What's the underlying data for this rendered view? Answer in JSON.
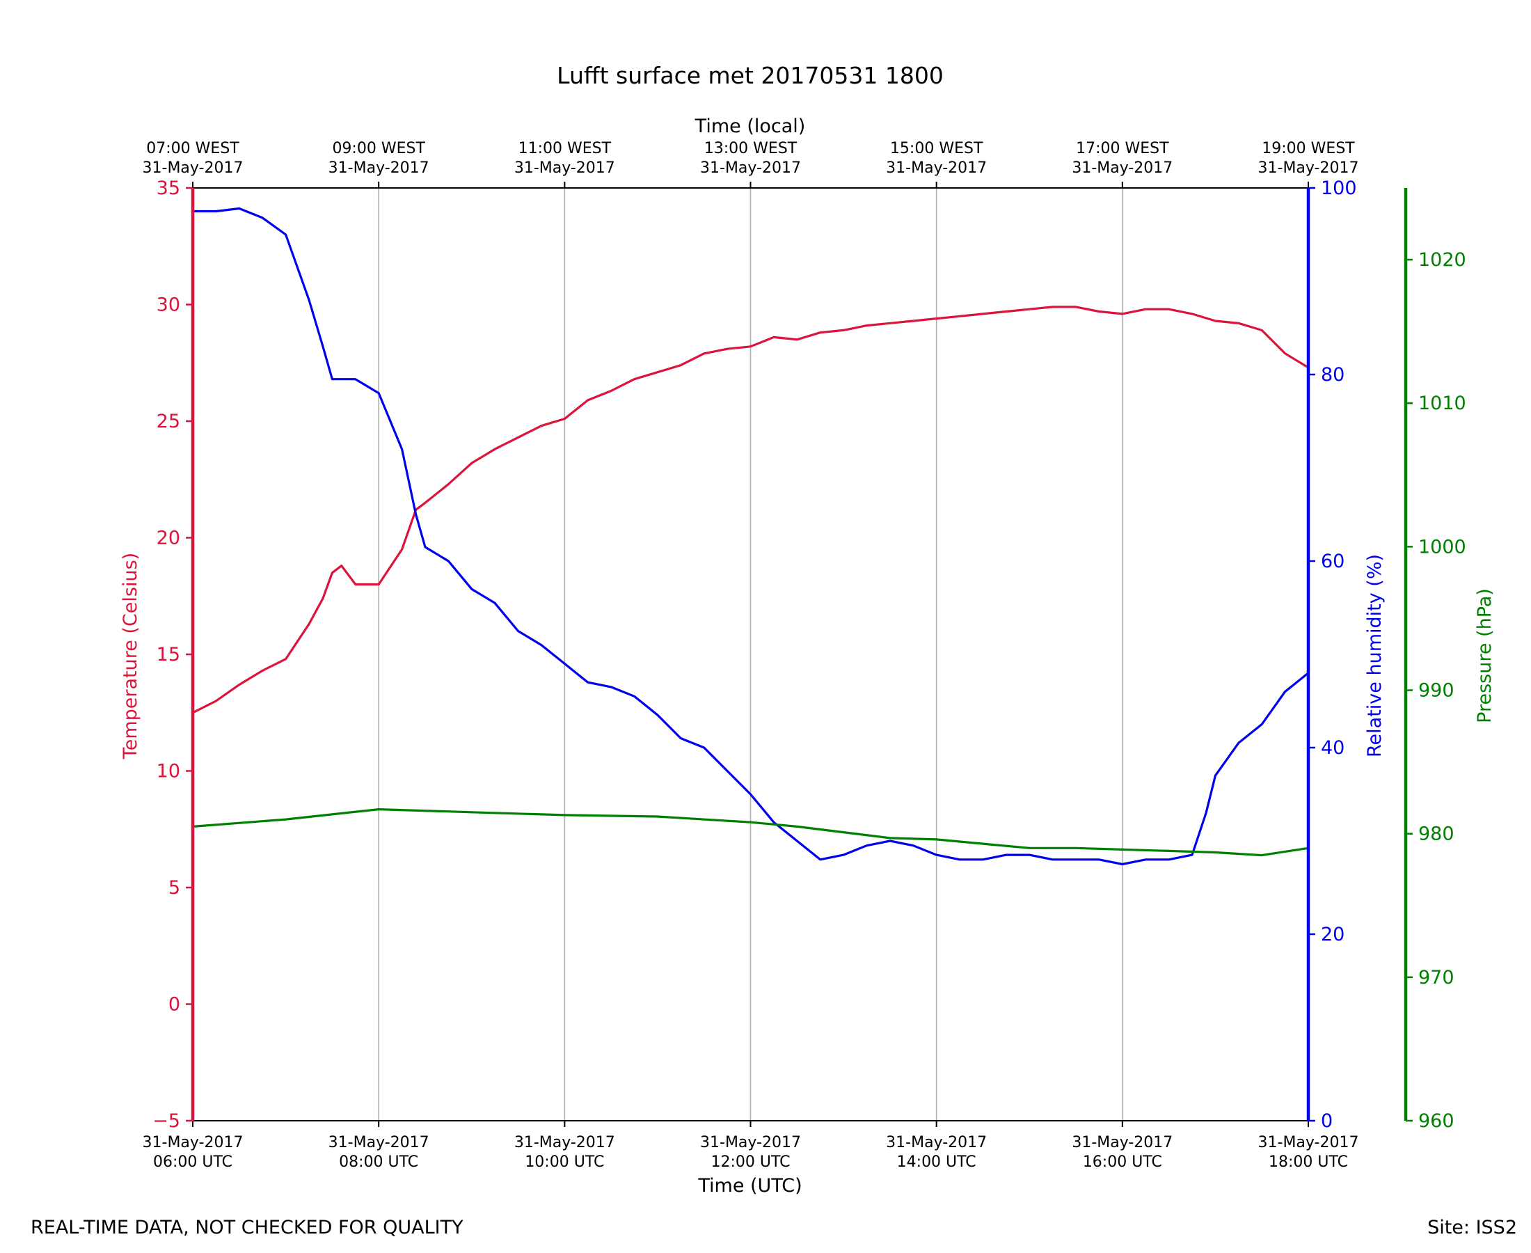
{
  "chart_data": {
    "type": "line",
    "title": "Lufft surface met 20170531 1800",
    "xlabel_bottom": "Time (UTC)",
    "xlabel_top": "Time (local)",
    "x_hours_range": [
      6,
      18
    ],
    "bottom_ticks": [
      {
        "hour": 6,
        "line1": "31-May-2017",
        "line2": "06:00 UTC"
      },
      {
        "hour": 8,
        "line1": "31-May-2017",
        "line2": "08:00 UTC"
      },
      {
        "hour": 10,
        "line1": "31-May-2017",
        "line2": "10:00 UTC"
      },
      {
        "hour": 12,
        "line1": "31-May-2017",
        "line2": "12:00 UTC"
      },
      {
        "hour": 14,
        "line1": "31-May-2017",
        "line2": "14:00 UTC"
      },
      {
        "hour": 16,
        "line1": "31-May-2017",
        "line2": "16:00 UTC"
      },
      {
        "hour": 18,
        "line1": "31-May-2017",
        "line2": "18:00 UTC"
      }
    ],
    "top_ticks": [
      {
        "hour": 6,
        "line1": "07:00 WEST",
        "line2": "31-May-2017"
      },
      {
        "hour": 8,
        "line1": "09:00 WEST",
        "line2": "31-May-2017"
      },
      {
        "hour": 10,
        "line1": "11:00 WEST",
        "line2": "31-May-2017"
      },
      {
        "hour": 12,
        "line1": "13:00 WEST",
        "line2": "31-May-2017"
      },
      {
        "hour": 14,
        "line1": "15:00 WEST",
        "line2": "31-May-2017"
      },
      {
        "hour": 16,
        "line1": "17:00 WEST",
        "line2": "31-May-2017"
      },
      {
        "hour": 18,
        "line1": "19:00 WEST",
        "line2": "31-May-2017"
      }
    ],
    "axes": {
      "temperature": {
        "label": "Temperature (Celsius)",
        "color": "#dc143c",
        "ylim": [
          -5,
          35
        ],
        "ticks": [
          "−5",
          "0",
          "5",
          "10",
          "15",
          "20",
          "25",
          "30",
          "35"
        ]
      },
      "humidity": {
        "label": "Relative humidity (%)",
        "color": "#0000ee",
        "ylim": [
          0,
          100
        ],
        "ticks": [
          "0",
          "20",
          "40",
          "60",
          "80",
          "100"
        ]
      },
      "pressure": {
        "label": "Pressure (hPa)",
        "color": "#008000",
        "ylim": [
          960,
          1025
        ],
        "ticks": [
          "960",
          "970",
          "980",
          "990",
          "1000",
          "1010",
          "1020"
        ]
      }
    },
    "series": [
      {
        "name": "Temperature",
        "axis": "temperature",
        "color": "#dc143c",
        "x": [
          6.0,
          6.25,
          6.5,
          6.75,
          7.0,
          7.25,
          7.4,
          7.5,
          7.6,
          7.75,
          8.0,
          8.25,
          8.4,
          8.5,
          8.75,
          9.0,
          9.25,
          9.5,
          9.75,
          10.0,
          10.25,
          10.5,
          10.75,
          11.0,
          11.25,
          11.5,
          11.75,
          12.0,
          12.25,
          12.5,
          12.75,
          13.0,
          13.25,
          13.5,
          13.75,
          14.0,
          14.25,
          14.5,
          14.75,
          15.0,
          15.25,
          15.5,
          15.75,
          16.0,
          16.25,
          16.5,
          16.75,
          17.0,
          17.25,
          17.5,
          17.75,
          18.0
        ],
        "y": [
          12.5,
          13.0,
          13.7,
          14.3,
          14.8,
          16.3,
          17.4,
          18.5,
          18.8,
          18.0,
          18.0,
          19.5,
          21.2,
          21.5,
          22.3,
          23.2,
          23.8,
          24.3,
          24.8,
          25.1,
          25.9,
          26.3,
          26.8,
          27.1,
          27.4,
          27.9,
          28.1,
          28.2,
          28.6,
          28.5,
          28.8,
          28.9,
          29.1,
          29.2,
          29.3,
          29.4,
          29.5,
          29.6,
          29.7,
          29.8,
          29.9,
          29.9,
          29.7,
          29.6,
          29.8,
          29.8,
          29.6,
          29.3,
          29.2,
          28.9,
          27.9,
          27.3
        ]
      },
      {
        "name": "Relative humidity",
        "axis": "humidity",
        "color": "#0000ee",
        "x": [
          6.0,
          6.25,
          6.5,
          6.75,
          7.0,
          7.25,
          7.4,
          7.5,
          7.75,
          8.0,
          8.25,
          8.4,
          8.5,
          8.75,
          9.0,
          9.25,
          9.5,
          9.75,
          10.0,
          10.25,
          10.5,
          10.75,
          11.0,
          11.25,
          11.5,
          11.75,
          12.0,
          12.25,
          12.5,
          12.75,
          13.0,
          13.25,
          13.5,
          13.75,
          14.0,
          14.25,
          14.5,
          14.75,
          15.0,
          15.25,
          15.5,
          15.75,
          16.0,
          16.25,
          16.5,
          16.75,
          16.9,
          17.0,
          17.25,
          17.5,
          17.75,
          18.0
        ],
        "y": [
          97.5,
          97.5,
          97.8,
          96.8,
          95.0,
          88.0,
          83.0,
          79.5,
          79.5,
          78.0,
          72.0,
          65.0,
          61.5,
          60.0,
          57.0,
          55.5,
          52.5,
          51.0,
          49.0,
          47.0,
          46.5,
          45.5,
          43.5,
          41.0,
          40.0,
          37.5,
          35.0,
          32.0,
          30.0,
          28.0,
          28.5,
          29.5,
          30.0,
          29.5,
          28.5,
          28.0,
          28.0,
          28.5,
          28.5,
          28.0,
          28.0,
          28.0,
          27.5,
          28.0,
          28.0,
          28.5,
          33.0,
          37.0,
          40.5,
          42.5,
          46.0,
          48.0
        ]
      },
      {
        "name": "Pressure",
        "axis": "pressure",
        "color": "#008000",
        "x": [
          6.0,
          7.0,
          8.0,
          9.0,
          10.0,
          11.0,
          12.0,
          12.5,
          13.0,
          13.5,
          14.0,
          14.5,
          15.0,
          15.5,
          16.0,
          16.5,
          17.0,
          17.5,
          18.0
        ],
        "y": [
          980.5,
          981.0,
          981.7,
          981.5,
          981.3,
          981.2,
          980.8,
          980.5,
          980.1,
          979.7,
          979.6,
          979.3,
          979.0,
          979.0,
          978.9,
          978.8,
          978.7,
          978.5,
          979.0
        ]
      }
    ]
  },
  "footer": {
    "left": "REAL-TIME DATA, NOT CHECKED FOR QUALITY",
    "right": "Site: ISS2"
  }
}
